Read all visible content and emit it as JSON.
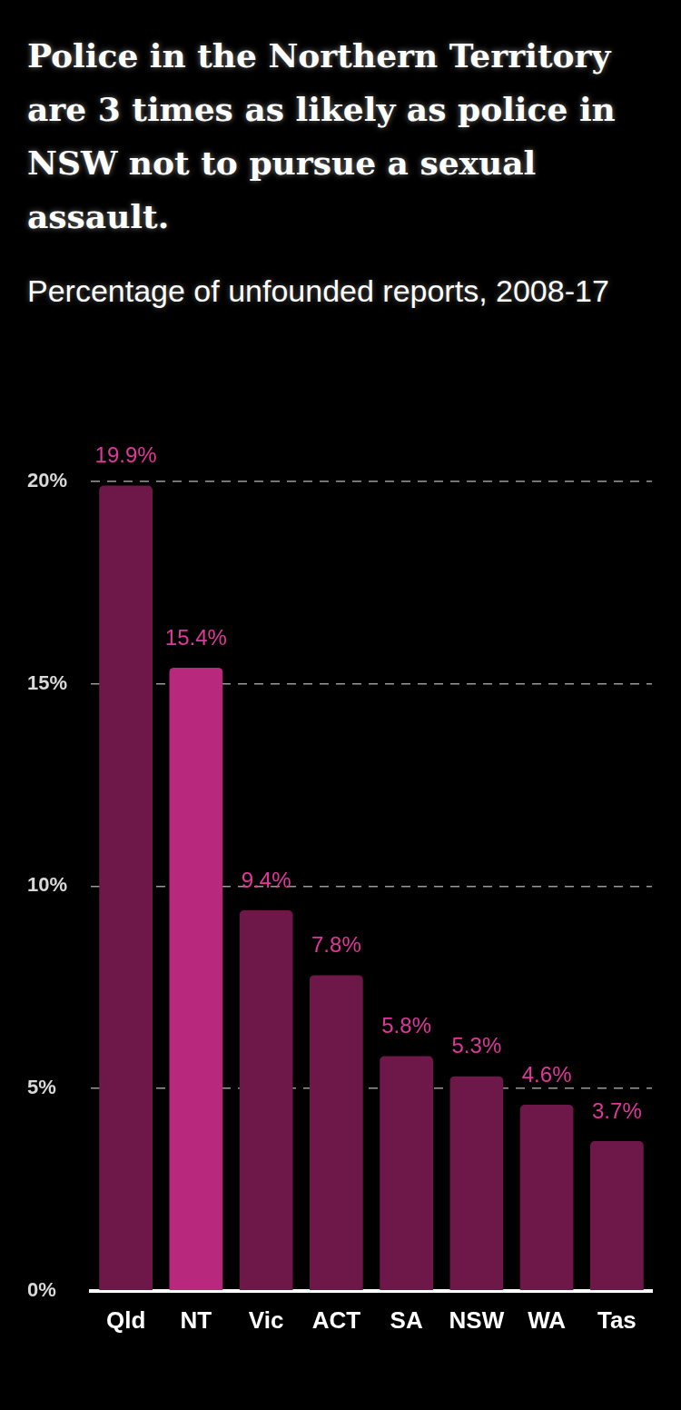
{
  "chart_data": {
    "type": "bar",
    "title": "Police in the Northern Territory are 3 times as likely as police in NSW not to pursue a sexual assault.",
    "subtitle": "Percentage of unfounded reports, 2008-17",
    "categories": [
      "Qld",
      "NT",
      "Vic",
      "ACT",
      "SA",
      "NSW",
      "WA",
      "Tas"
    ],
    "values": [
      19.9,
      15.4,
      9.4,
      7.8,
      5.8,
      5.3,
      4.6,
      3.7
    ],
    "value_labels": [
      "19.9%",
      "15.4%",
      "9.4%",
      "7.8%",
      "5.8%",
      "5.3%",
      "4.6%",
      "3.7%"
    ],
    "colors": [
      "#6e1849",
      "#b8287c",
      "#6e1849",
      "#6e1849",
      "#6e1849",
      "#6e1849",
      "#6e1849",
      "#6e1849"
    ],
    "data_labels": true,
    "grid": true,
    "ylim": [
      0,
      20
    ],
    "yticks": [
      {
        "value": 0,
        "label": "0%"
      },
      {
        "value": 5,
        "label": "5%"
      },
      {
        "value": 10,
        "label": "10%"
      },
      {
        "value": 15,
        "label": "15%"
      },
      {
        "value": 20,
        "label": "20%"
      }
    ]
  }
}
